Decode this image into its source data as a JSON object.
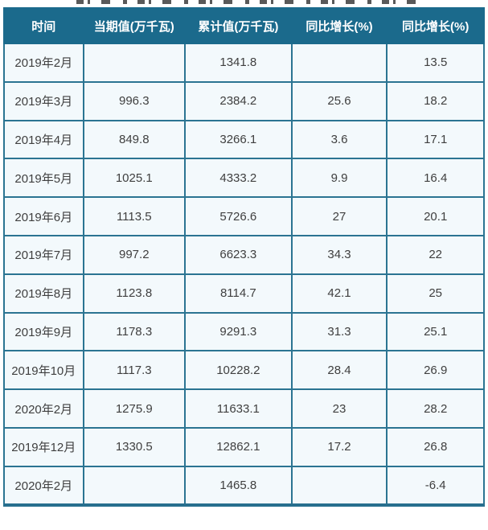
{
  "colors": {
    "header_bg": "#1b6a8c",
    "header_text": "#ffffff",
    "border": "#2b7492",
    "cell_bg": "#f3f9fc",
    "cell_text": "#3f3f3f"
  },
  "table": {
    "columns": [
      "时间",
      "当期值(万千瓦)",
      "累计值(万千瓦)",
      "同比增长(%)",
      "同比增长(%)"
    ],
    "rows": [
      [
        "2019年2月",
        "",
        "1341.8",
        "",
        "13.5"
      ],
      [
        "2019年3月",
        "996.3",
        "2384.2",
        "25.6",
        "18.2"
      ],
      [
        "2019年4月",
        "849.8",
        "3266.1",
        "3.6",
        "17.1"
      ],
      [
        "2019年5月",
        "1025.1",
        "4333.2",
        "9.9",
        "16.4"
      ],
      [
        "2019年6月",
        "1113.5",
        "5726.6",
        "27",
        "20.1"
      ],
      [
        "2019年7月",
        "997.2",
        "6623.3",
        "34.3",
        "22"
      ],
      [
        "2019年8月",
        "1123.8",
        "8114.7",
        "42.1",
        "25"
      ],
      [
        "2019年9月",
        "1178.3",
        "9291.3",
        "31.3",
        "25.1"
      ],
      [
        "2019年10月",
        "1117.3",
        "10228.2",
        "28.4",
        "26.9"
      ],
      [
        "2020年2月",
        "1275.9",
        "11633.1",
        "23",
        "28.2"
      ],
      [
        "2019年12月",
        "1330.5",
        "12862.1",
        "17.2",
        "26.8"
      ],
      [
        "2020年2月",
        "",
        "1465.8",
        "",
        "-6.4"
      ]
    ]
  },
  "chart_data": {
    "type": "table",
    "columns": [
      "时间",
      "当期值(万千瓦)",
      "累计值(万千瓦)",
      "同比增长(%)",
      "同比增长(%)"
    ],
    "categories": [
      "2019年2月",
      "2019年3月",
      "2019年4月",
      "2019年5月",
      "2019年6月",
      "2019年7月",
      "2019年8月",
      "2019年9月",
      "2019年10月",
      "2020年2月",
      "2019年12月",
      "2020年2月"
    ],
    "series": [
      {
        "name": "当期值(万千瓦)",
        "values": [
          null,
          996.3,
          849.8,
          1025.1,
          1113.5,
          997.2,
          1123.8,
          1178.3,
          1117.3,
          1275.9,
          1330.5,
          null
        ]
      },
      {
        "name": "累计值(万千瓦)",
        "values": [
          1341.8,
          2384.2,
          3266.1,
          4333.2,
          5726.6,
          6623.3,
          8114.7,
          9291.3,
          10228.2,
          11633.1,
          12862.1,
          1465.8
        ]
      },
      {
        "name": "同比增长(%)",
        "values": [
          null,
          25.6,
          3.6,
          9.9,
          27,
          34.3,
          42.1,
          31.3,
          28.4,
          23,
          17.2,
          null
        ]
      },
      {
        "name": "同比增长(%)(累计)",
        "values": [
          13.5,
          18.2,
          17.1,
          16.4,
          20.1,
          22,
          25,
          25.1,
          26.9,
          28.2,
          26.8,
          -6.4
        ]
      }
    ]
  }
}
